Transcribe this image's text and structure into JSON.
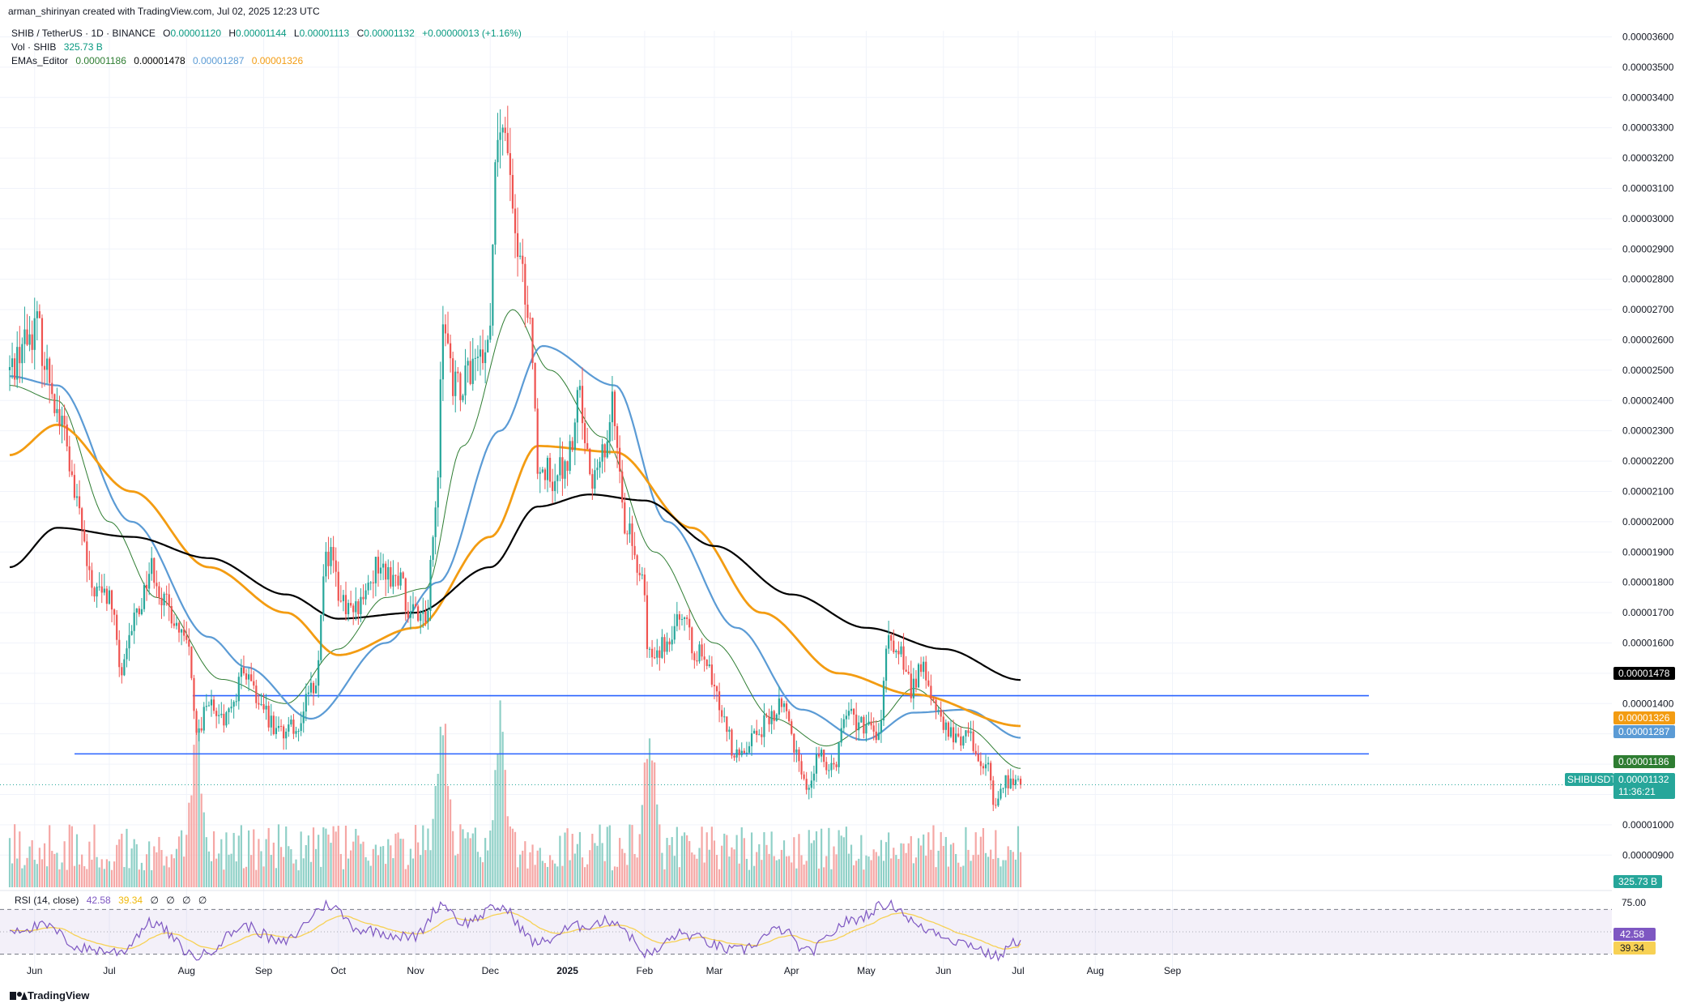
{
  "header": {
    "created_by": "arman_shirinyan created with TradingView.com, Jul 02, 2025 12:23 UTC",
    "symbol_line": "SHIB / TetherUS · 1D · BINANCE",
    "ohlc": {
      "o_label": "O",
      "o": "0.00001120",
      "h_label": "H",
      "h": "0.00001144",
      "l_label": "L",
      "l": "0.00001113",
      "c_label": "C",
      "c": "0.00001132",
      "change": "+0.00000013 (+1.16%)"
    },
    "vol_label": "Vol · SHIB",
    "vol_value": "325.73 B",
    "ema_label": "EMAs_Editor",
    "ema_values": [
      "0.00001186",
      "0.00001478",
      "0.00001287",
      "0.00001326"
    ]
  },
  "rsi_header": {
    "label": "RSI (14, close)",
    "value": "42.58",
    "ma_value": "39.34",
    "extras": [
      "∅",
      "∅",
      "∅",
      "∅"
    ]
  },
  "price_axis": [
    "0.00003600",
    "0.00003500",
    "0.00003400",
    "0.00003300",
    "0.00003200",
    "0.00003100",
    "0.00003000",
    "0.00002900",
    "0.00002800",
    "0.00002700",
    "0.00002600",
    "0.00002500",
    "0.00002400",
    "0.00002300",
    "0.00002200",
    "0.00002100",
    "0.00002000",
    "0.00001900",
    "0.00001800",
    "0.00001700",
    "0.00001600",
    "0.00001500",
    "0.00001400",
    "0.00001300",
    "0.00001200",
    "0.00001100",
    "0.00001000",
    "0.00000900"
  ],
  "price_badges": {
    "ema200": "0.00001478",
    "ema100": "0.00001326",
    "ema50": "0.00001287",
    "ema20": "0.00001186",
    "symbol": "SHIBUSDT",
    "last": "0.00001132",
    "countdown": "11:36:21",
    "volume": "325.73 B"
  },
  "rsi_axis": {
    "upper": "75.00",
    "value": "42.58",
    "ma": "39.34"
  },
  "time_axis": [
    "Jun",
    "Jul",
    "Aug",
    "Sep",
    "Oct",
    "Nov",
    "Dec",
    "2025",
    "Feb",
    "Mar",
    "Apr",
    "May",
    "Jun",
    "Jul",
    "Aug",
    "Sep"
  ],
  "footer": {
    "brand": "TradingView"
  },
  "colors": {
    "up": "#26a69a",
    "down": "#ef5350",
    "vol_up": "#8fd0c7",
    "vol_down": "#f5a7a5",
    "ema20": "#2e7d32",
    "ema50": "#5b9bd5",
    "ema100": "#f39c12",
    "ema200": "#000000",
    "hline": "#2962ff",
    "rsi": "#7e57c2",
    "rsi_ma": "#f7d154"
  },
  "chart_data": {
    "type": "candlestick",
    "title": "SHIB / TetherUS · 1D · BINANCE",
    "x_range": [
      "2024-05-22",
      "2025-09-20"
    ],
    "y_range": [
      8.8e-06,
      3.62e-05
    ],
    "price_scale_step": 1e-06,
    "horizontal_levels": [
      1.426e-05,
      1.234e-05
    ],
    "last_close": 1.132e-05,
    "anchors": [
      {
        "date": "2024-05-22",
        "price": 2.5e-05
      },
      {
        "date": "2024-05-28",
        "price": 2.6e-05
      },
      {
        "date": "2024-06-02",
        "price": 2.65e-05
      },
      {
        "date": "2024-06-06",
        "price": 2.5e-05
      },
      {
        "date": "2024-06-12",
        "price": 2.32e-05
      },
      {
        "date": "2024-06-18",
        "price": 2.05e-05
      },
      {
        "date": "2024-06-24",
        "price": 1.78e-05
      },
      {
        "date": "2024-07-01",
        "price": 1.75e-05
      },
      {
        "date": "2024-07-06",
        "price": 1.5e-05
      },
      {
        "date": "2024-07-12",
        "price": 1.7e-05
      },
      {
        "date": "2024-07-18",
        "price": 1.85e-05
      },
      {
        "date": "2024-07-24",
        "price": 1.72e-05
      },
      {
        "date": "2024-08-01",
        "price": 1.6e-05
      },
      {
        "date": "2024-08-05",
        "price": 1.3e-05
      },
      {
        "date": "2024-08-10",
        "price": 1.4e-05
      },
      {
        "date": "2024-08-17",
        "price": 1.35e-05
      },
      {
        "date": "2024-08-24",
        "price": 1.5e-05
      },
      {
        "date": "2024-08-31",
        "price": 1.38e-05
      },
      {
        "date": "2024-09-07",
        "price": 1.3e-05
      },
      {
        "date": "2024-09-14",
        "price": 1.33e-05
      },
      {
        "date": "2024-09-21",
        "price": 1.45e-05
      },
      {
        "date": "2024-09-27",
        "price": 1.9e-05
      },
      {
        "date": "2024-10-03",
        "price": 1.72e-05
      },
      {
        "date": "2024-10-10",
        "price": 1.73e-05
      },
      {
        "date": "2024-10-17",
        "price": 1.85e-05
      },
      {
        "date": "2024-10-24",
        "price": 1.82e-05
      },
      {
        "date": "2024-10-31",
        "price": 1.7e-05
      },
      {
        "date": "2024-11-05",
        "price": 1.7e-05
      },
      {
        "date": "2024-11-09",
        "price": 2e-05
      },
      {
        "date": "2024-11-12",
        "price": 2.7e-05
      },
      {
        "date": "2024-11-17",
        "price": 2.45e-05
      },
      {
        "date": "2024-11-24",
        "price": 2.5e-05
      },
      {
        "date": "2024-11-30",
        "price": 2.6e-05
      },
      {
        "date": "2024-12-04",
        "price": 3.25e-05
      },
      {
        "date": "2024-12-08",
        "price": 3.2e-05
      },
      {
        "date": "2024-12-12",
        "price": 2.85e-05
      },
      {
        "date": "2024-12-17",
        "price": 2.7e-05
      },
      {
        "date": "2024-12-20",
        "price": 2.2e-05
      },
      {
        "date": "2024-12-26",
        "price": 2.15e-05
      },
      {
        "date": "2025-01-01",
        "price": 2.2e-05
      },
      {
        "date": "2025-01-06",
        "price": 2.4e-05
      },
      {
        "date": "2025-01-10",
        "price": 2.15e-05
      },
      {
        "date": "2025-01-16",
        "price": 2.25e-05
      },
      {
        "date": "2025-01-19",
        "price": 2.4e-05
      },
      {
        "date": "2025-01-24",
        "price": 2e-05
      },
      {
        "date": "2025-01-31",
        "price": 1.8e-05
      },
      {
        "date": "2025-02-03",
        "price": 1.55e-05
      },
      {
        "date": "2025-02-09",
        "price": 1.6e-05
      },
      {
        "date": "2025-02-15",
        "price": 1.7e-05
      },
      {
        "date": "2025-02-21",
        "price": 1.58e-05
      },
      {
        "date": "2025-02-27",
        "price": 1.5e-05
      },
      {
        "date": "2025-03-03",
        "price": 1.4e-05
      },
      {
        "date": "2025-03-10",
        "price": 1.22e-05
      },
      {
        "date": "2025-03-17",
        "price": 1.3e-05
      },
      {
        "date": "2025-03-24",
        "price": 1.35e-05
      },
      {
        "date": "2025-03-28",
        "price": 1.4e-05
      },
      {
        "date": "2025-04-03",
        "price": 1.25e-05
      },
      {
        "date": "2025-04-07",
        "price": 1.12e-05
      },
      {
        "date": "2025-04-12",
        "price": 1.22e-05
      },
      {
        "date": "2025-04-18",
        "price": 1.2e-05
      },
      {
        "date": "2025-04-23",
        "price": 1.38e-05
      },
      {
        "date": "2025-04-30",
        "price": 1.32e-05
      },
      {
        "date": "2025-05-06",
        "price": 1.3e-05
      },
      {
        "date": "2025-05-10",
        "price": 1.6e-05
      },
      {
        "date": "2025-05-14",
        "price": 1.58e-05
      },
      {
        "date": "2025-05-19",
        "price": 1.45e-05
      },
      {
        "date": "2025-05-23",
        "price": 1.52e-05
      },
      {
        "date": "2025-05-27",
        "price": 1.43e-05
      },
      {
        "date": "2025-06-01",
        "price": 1.32e-05
      },
      {
        "date": "2025-06-06",
        "price": 1.28e-05
      },
      {
        "date": "2025-06-11",
        "price": 1.31e-05
      },
      {
        "date": "2025-06-15",
        "price": 1.22e-05
      },
      {
        "date": "2025-06-19",
        "price": 1.18e-05
      },
      {
        "date": "2025-06-22",
        "price": 1.06e-05
      },
      {
        "date": "2025-06-26",
        "price": 1.15e-05
      },
      {
        "date": "2025-07-02",
        "price": 1.13e-05
      }
    ],
    "ema_series": [
      {
        "name": "EMA 20",
        "last": 1.186e-05,
        "anchors": [
          {
            "date": "2024-05-22",
            "price": 2.45e-05
          },
          {
            "date": "2024-06-10",
            "price": 2.4e-05
          },
          {
            "date": "2024-07-01",
            "price": 2e-05
          },
          {
            "date": "2024-07-20",
            "price": 1.75e-05
          },
          {
            "date": "2024-08-15",
            "price": 1.48e-05
          },
          {
            "date": "2024-09-10",
            "price": 1.4e-05
          },
          {
            "date": "2024-10-01",
            "price": 1.58e-05
          },
          {
            "date": "2024-10-20",
            "price": 1.75e-05
          },
          {
            "date": "2024-11-05",
            "price": 1.78e-05
          },
          {
            "date": "2024-11-20",
            "price": 2.25e-05
          },
          {
            "date": "2024-12-10",
            "price": 2.7e-05
          },
          {
            "date": "2024-12-25",
            "price": 2.5e-05
          },
          {
            "date": "2025-01-15",
            "price": 2.28e-05
          },
          {
            "date": "2025-02-05",
            "price": 1.9e-05
          },
          {
            "date": "2025-03-01",
            "price": 1.6e-05
          },
          {
            "date": "2025-03-25",
            "price": 1.35e-05
          },
          {
            "date": "2025-04-15",
            "price": 1.26e-05
          },
          {
            "date": "2025-05-05",
            "price": 1.34e-05
          },
          {
            "date": "2025-05-20",
            "price": 1.45e-05
          },
          {
            "date": "2025-06-10",
            "price": 1.32e-05
          },
          {
            "date": "2025-07-02",
            "price": 1.186e-05
          }
        ]
      },
      {
        "name": "EMA 50",
        "last": 1.287e-05,
        "anchors": [
          {
            "date": "2024-05-22",
            "price": 2.48e-05
          },
          {
            "date": "2024-06-10",
            "price": 2.45e-05
          },
          {
            "date": "2024-07-10",
            "price": 2e-05
          },
          {
            "date": "2024-08-10",
            "price": 1.62e-05
          },
          {
            "date": "2024-08-25",
            "price": 1.52e-05
          },
          {
            "date": "2024-09-20",
            "price": 1.35e-05
          },
          {
            "date": "2024-10-20",
            "price": 1.6e-05
          },
          {
            "date": "2024-11-10",
            "price": 1.8e-05
          },
          {
            "date": "2024-12-05",
            "price": 2.3e-05
          },
          {
            "date": "2024-12-22",
            "price": 2.58e-05
          },
          {
            "date": "2025-01-20",
            "price": 2.45e-05
          },
          {
            "date": "2025-02-10",
            "price": 2e-05
          },
          {
            "date": "2025-03-10",
            "price": 1.65e-05
          },
          {
            "date": "2025-04-05",
            "price": 1.38e-05
          },
          {
            "date": "2025-04-30",
            "price": 1.28e-05
          },
          {
            "date": "2025-05-20",
            "price": 1.37e-05
          },
          {
            "date": "2025-06-10",
            "price": 1.38e-05
          },
          {
            "date": "2025-07-02",
            "price": 1.287e-05
          }
        ]
      },
      {
        "name": "EMA 100",
        "last": 1.326e-05,
        "anchors": [
          {
            "date": "2024-05-22",
            "price": 2.22e-05
          },
          {
            "date": "2024-06-10",
            "price": 2.32e-05
          },
          {
            "date": "2024-07-10",
            "price": 2.1e-05
          },
          {
            "date": "2024-08-10",
            "price": 1.85e-05
          },
          {
            "date": "2024-09-10",
            "price": 1.7e-05
          },
          {
            "date": "2024-10-01",
            "price": 1.56e-05
          },
          {
            "date": "2024-11-01",
            "price": 1.65e-05
          },
          {
            "date": "2024-12-01",
            "price": 1.95e-05
          },
          {
            "date": "2024-12-20",
            "price": 2.25e-05
          },
          {
            "date": "2025-01-20",
            "price": 2.23e-05
          },
          {
            "date": "2025-02-20",
            "price": 1.98e-05
          },
          {
            "date": "2025-03-20",
            "price": 1.7e-05
          },
          {
            "date": "2025-04-20",
            "price": 1.5e-05
          },
          {
            "date": "2025-05-20",
            "price": 1.43e-05
          },
          {
            "date": "2025-07-02",
            "price": 1.326e-05
          }
        ]
      },
      {
        "name": "EMA 200",
        "last": 1.478e-05,
        "anchors": [
          {
            "date": "2024-05-22",
            "price": 1.85e-05
          },
          {
            "date": "2024-06-10",
            "price": 1.98e-05
          },
          {
            "date": "2024-07-10",
            "price": 1.95e-05
          },
          {
            "date": "2024-08-10",
            "price": 1.88e-05
          },
          {
            "date": "2024-09-10",
            "price": 1.76e-05
          },
          {
            "date": "2024-10-01",
            "price": 1.68e-05
          },
          {
            "date": "2024-11-01",
            "price": 1.7e-05
          },
          {
            "date": "2024-12-01",
            "price": 1.85e-05
          },
          {
            "date": "2024-12-20",
            "price": 2.05e-05
          },
          {
            "date": "2025-01-10",
            "price": 2.09e-05
          },
          {
            "date": "2025-02-01",
            "price": 2.07e-05
          },
          {
            "date": "2025-03-01",
            "price": 1.92e-05
          },
          {
            "date": "2025-04-01",
            "price": 1.76e-05
          },
          {
            "date": "2025-05-01",
            "price": 1.65e-05
          },
          {
            "date": "2025-06-01",
            "price": 1.58e-05
          },
          {
            "date": "2025-07-02",
            "price": 1.478e-05
          }
        ]
      }
    ],
    "volume_peaks": [
      {
        "date": "2024-08-05",
        "volume_relative": 0.9
      },
      {
        "date": "2024-11-12",
        "volume_relative": 1.0
      },
      {
        "date": "2024-12-05",
        "volume_relative": 0.9
      },
      {
        "date": "2025-02-03",
        "volume_relative": 0.95
      }
    ],
    "rsi": {
      "period": 14,
      "last": 42.58,
      "ma_last": 39.34,
      "levels": [
        70,
        50,
        30
      ],
      "anchors": [
        {
          "date": "2024-05-22",
          "value": 52
        },
        {
          "date": "2024-06-05",
          "value": 55
        },
        {
          "date": "2024-06-20",
          "value": 35
        },
        {
          "date": "2024-07-05",
          "value": 32
        },
        {
          "date": "2024-07-18",
          "value": 58
        },
        {
          "date": "2024-08-05",
          "value": 28
        },
        {
          "date": "2024-08-25",
          "value": 55
        },
        {
          "date": "2024-09-08",
          "value": 40
        },
        {
          "date": "2024-09-27",
          "value": 74
        },
        {
          "date": "2024-10-10",
          "value": 52
        },
        {
          "date": "2024-10-31",
          "value": 45
        },
        {
          "date": "2024-11-12",
          "value": 75
        },
        {
          "date": "2024-11-20",
          "value": 58
        },
        {
          "date": "2024-12-05",
          "value": 72
        },
        {
          "date": "2024-12-20",
          "value": 40
        },
        {
          "date": "2025-01-05",
          "value": 55
        },
        {
          "date": "2025-01-19",
          "value": 60
        },
        {
          "date": "2025-02-03",
          "value": 30
        },
        {
          "date": "2025-02-15",
          "value": 48
        },
        {
          "date": "2025-03-10",
          "value": 33
        },
        {
          "date": "2025-03-28",
          "value": 52
        },
        {
          "date": "2025-04-07",
          "value": 32
        },
        {
          "date": "2025-04-25",
          "value": 60
        },
        {
          "date": "2025-05-10",
          "value": 75
        },
        {
          "date": "2025-05-25",
          "value": 52
        },
        {
          "date": "2025-06-10",
          "value": 40
        },
        {
          "date": "2025-06-22",
          "value": 28
        },
        {
          "date": "2025-07-02",
          "value": 42.58
        }
      ]
    }
  }
}
